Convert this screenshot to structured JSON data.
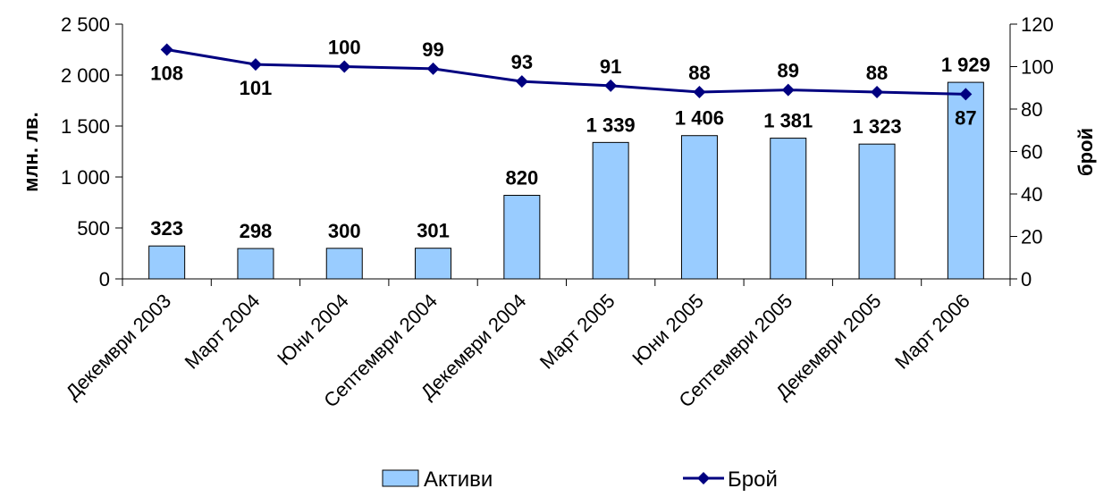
{
  "chart_data": {
    "type": "bar+line",
    "categories": [
      "Декември 2003",
      "Март 2004",
      "Юни 2004",
      "Септември 2004",
      "Декември 2004",
      "Март 2005",
      "Юни 2005",
      "Септември 2005",
      "Декември 2005",
      "Март 2006"
    ],
    "series": [
      {
        "name": "Активи",
        "type": "bar",
        "axis": "left",
        "values": [
          323,
          298,
          300,
          301,
          820,
          1339,
          1406,
          1381,
          1323,
          1929
        ],
        "labels": [
          "323",
          "298",
          "300",
          "301",
          "820",
          "1 339",
          "1 406",
          "1 381",
          "1 323",
          "1 929"
        ],
        "color": "#99CCFF"
      },
      {
        "name": "Брой",
        "type": "line",
        "axis": "right",
        "values": [
          108,
          101,
          100,
          99,
          93,
          91,
          88,
          89,
          88,
          87
        ],
        "labels": [
          "108",
          "101",
          "100",
          "99",
          "93",
          "91",
          "88",
          "89",
          "88",
          "87"
        ],
        "color": "#000080"
      }
    ],
    "ylabel": "млн. лв.",
    "y2label": "брой",
    "ylim": [
      0,
      2500
    ],
    "y2lim": [
      0,
      120
    ],
    "yticks": [
      "0",
      "500",
      "1 000",
      "1 500",
      "2 000",
      "2 500"
    ],
    "y2ticks": [
      "0",
      "20",
      "40",
      "60",
      "80",
      "100",
      "120"
    ],
    "grid": false,
    "legend_position": "bottom"
  }
}
